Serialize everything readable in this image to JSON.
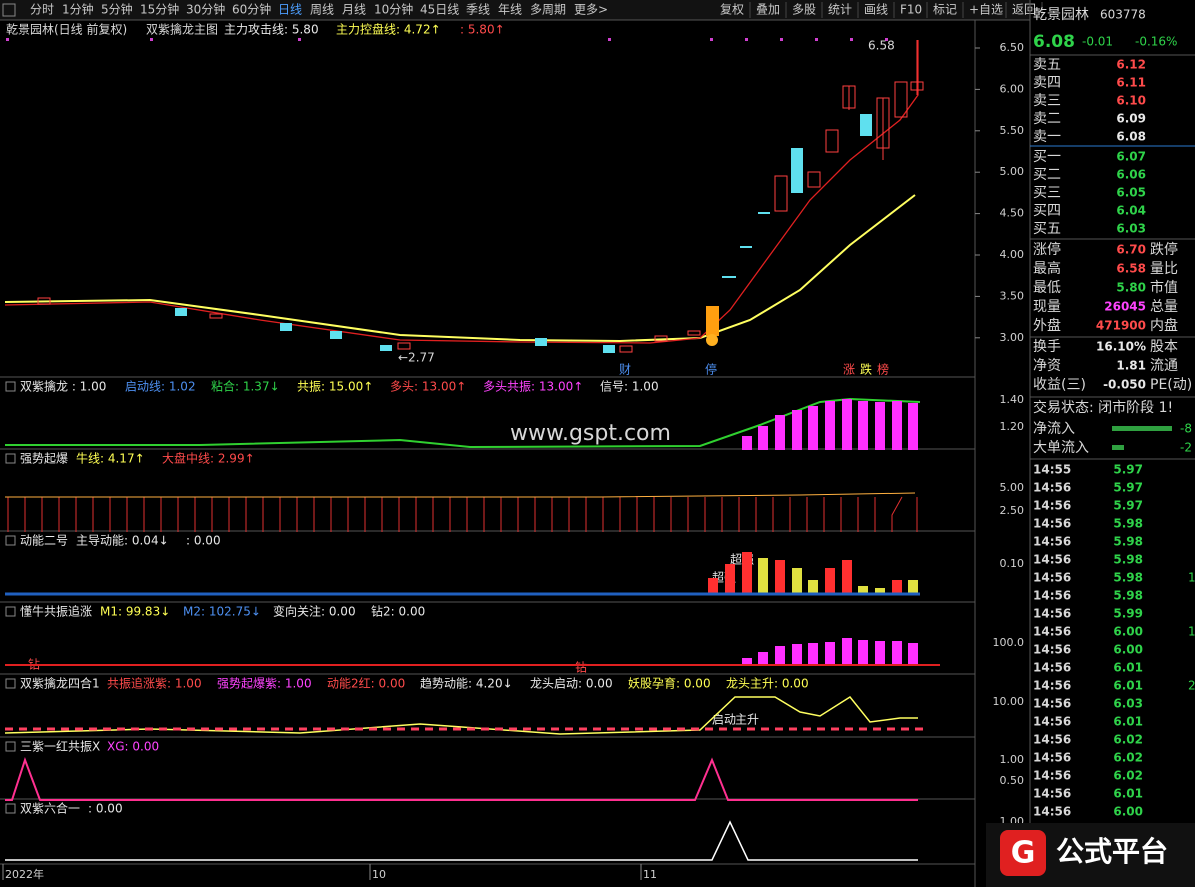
{
  "toolbar": {
    "periods": [
      "分时",
      "1分钟",
      "5分钟",
      "15分钟",
      "30分钟",
      "60分钟",
      "日线",
      "周线",
      "月线",
      "10分钟",
      "45日线",
      "季线",
      "年线",
      "多周期",
      "更多>"
    ],
    "tools": [
      "复权",
      "叠加",
      "多股",
      "统计",
      "画线",
      "F10",
      "标记",
      "+自选",
      "返回"
    ]
  },
  "main_header": {
    "stock": "乾景园林(日线 前复权)",
    "indicator": "双紫擒龙主图",
    "items": [
      "主力攻击线: 5.80",
      "主力控盘线: 4.72↑",
      ": 5.80↑"
    ]
  },
  "price_axis": [
    "6.50",
    "6.00",
    "5.50",
    "5.00",
    "4.50",
    "4.00",
    "3.50",
    "3.00"
  ],
  "main_annotations": {
    "high": "6.58",
    "low": "←2.77",
    "markers": [
      "财",
      "停",
      "涨",
      "跌",
      "榜"
    ]
  },
  "panels": [
    {
      "items": [
        "双紫擒龙 : 1.00",
        "启动线: 1.02",
        "粘合: 1.37↓",
        "共振: 15.00↑",
        "多头: 13.00↑",
        "多头共振: 13.00↑",
        "信号: 1.00"
      ],
      "axis": [
        "1.40",
        "1.20"
      ]
    },
    {
      "items": [
        "强势起爆",
        "牛线: 4.17↑",
        "大盘中线: 2.99↑"
      ],
      "axis": [
        "5.00",
        "2.50"
      ]
    },
    {
      "items": [
        "动能二号",
        "主导动能: 0.04↓",
        ": 0.00"
      ],
      "axis": [
        "0.10"
      ],
      "annotations": [
        "超强",
        "超强"
      ]
    },
    {
      "items": [
        "懂牛共振追涨",
        "M1: 99.83↓",
        "M2: 102.75↓",
        "变向关注: 0.00",
        "钻2: 0.00"
      ],
      "axis": [
        "100.0"
      ],
      "annotations": [
        "钻",
        "钻"
      ]
    },
    {
      "items": [
        "双紫擒龙四合1",
        "共振追涨紫: 1.00",
        "强势起爆紫: 1.00",
        "动能2红: 0.00",
        "趋势动能: 4.20↓",
        "龙头启动: 0.00",
        "妖股孕育: 0.00",
        "龙头主升: 0.00"
      ],
      "axis": [
        "10.00"
      ],
      "annotations": [
        "启动",
        "主升"
      ]
    },
    {
      "items": [
        "三紫一红共振X",
        "XG: 0.00"
      ],
      "axis": [
        "1.00",
        "0.50"
      ]
    },
    {
      "items": [
        "双紫六合一",
        ": 0.00"
      ],
      "axis": [
        "1.00"
      ]
    }
  ],
  "watermark": "www.gspt.com",
  "x_axis": [
    "2022年",
    "10",
    "11"
  ],
  "quote": {
    "name": "乾景园林",
    "code": "603778",
    "price": "6.08",
    "change": "-0.01",
    "change_pct": "-0.16%"
  },
  "order_book": [
    [
      "卖五",
      "6.12"
    ],
    [
      "卖四",
      "6.11"
    ],
    [
      "卖三",
      "6.10"
    ],
    [
      "卖二",
      "6.09"
    ],
    [
      "卖一",
      "6.08"
    ],
    [
      "买一",
      "6.07"
    ],
    [
      "买二",
      "6.06"
    ],
    [
      "买三",
      "6.05"
    ],
    [
      "买四",
      "6.04"
    ],
    [
      "买五",
      "6.03"
    ]
  ],
  "stats": [
    [
      "涨停",
      "6.70",
      "跌停"
    ],
    [
      "最高",
      "6.58",
      "量比"
    ],
    [
      "最低",
      "5.80",
      "市值"
    ],
    [
      "现量",
      "26045",
      "总量"
    ],
    [
      "外盘",
      "471900",
      "内盘"
    ],
    [
      "换手",
      "16.10%",
      "股本"
    ],
    [
      "净资",
      "1.81",
      "流通"
    ],
    [
      "收益(三)",
      "-0.050",
      "PE(动)"
    ]
  ],
  "status": "交易状态: 闭市阶段 1!",
  "flows": [
    [
      "净流入",
      "-8"
    ],
    [
      "大单流入",
      "-2"
    ]
  ],
  "ticks": [
    {
      "time": "14:55",
      "price": "5.97"
    },
    {
      "time": "14:56",
      "price": "5.97"
    },
    {
      "time": "14:56",
      "price": "5.97"
    },
    {
      "time": "14:56",
      "price": "5.98"
    },
    {
      "time": "14:56",
      "price": "5.98"
    },
    {
      "time": "14:56",
      "price": "5.98"
    },
    {
      "time": "14:56",
      "price": "5.98",
      "volume": "1"
    },
    {
      "time": "14:56",
      "price": "5.98"
    },
    {
      "time": "14:56",
      "price": "5.99"
    },
    {
      "time": "14:56",
      "price": "6.00",
      "volume": "1"
    },
    {
      "time": "14:56",
      "price": "6.00"
    },
    {
      "time": "14:56",
      "price": "6.01"
    },
    {
      "time": "14:56",
      "price": "6.01",
      "volume": "2"
    },
    {
      "time": "14:56",
      "price": "6.03"
    },
    {
      "time": "14:56",
      "price": "6.01"
    },
    {
      "time": "14:56",
      "price": "6.02"
    },
    {
      "time": "14:56",
      "price": "6.02"
    },
    {
      "time": "14:56",
      "price": "6.02"
    },
    {
      "time": "14:56",
      "price": "6.01"
    },
    {
      "time": "14:56",
      "price": "6.00"
    }
  ],
  "logo": {
    "mark": "G",
    "text": "公式平台"
  }
}
